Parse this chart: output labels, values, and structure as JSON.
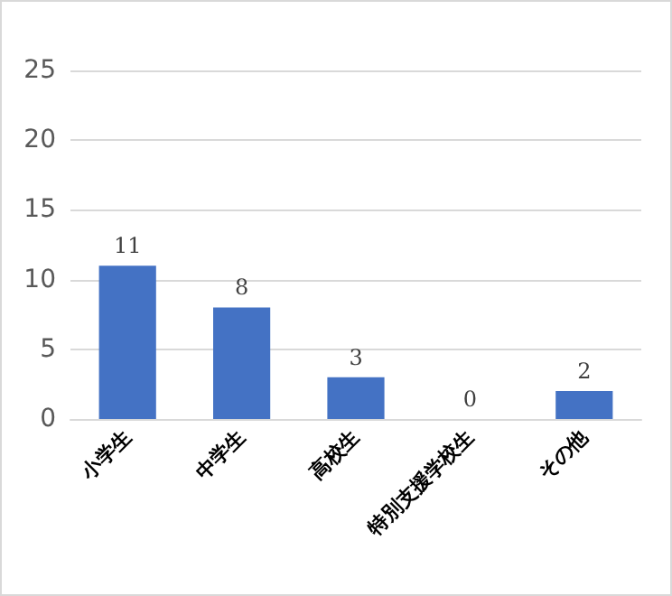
{
  "chart_data": {
    "type": "bar",
    "categories": [
      "小学生",
      "中学生",
      "高校生",
      "特別支援学校生",
      "その他"
    ],
    "values": [
      11,
      8,
      3,
      0,
      2
    ],
    "color": "#4472c4",
    "ylim": [
      0,
      25
    ],
    "yticks": [
      0,
      5,
      10,
      15,
      20,
      25
    ],
    "grid": "y",
    "data_labels": true
  }
}
